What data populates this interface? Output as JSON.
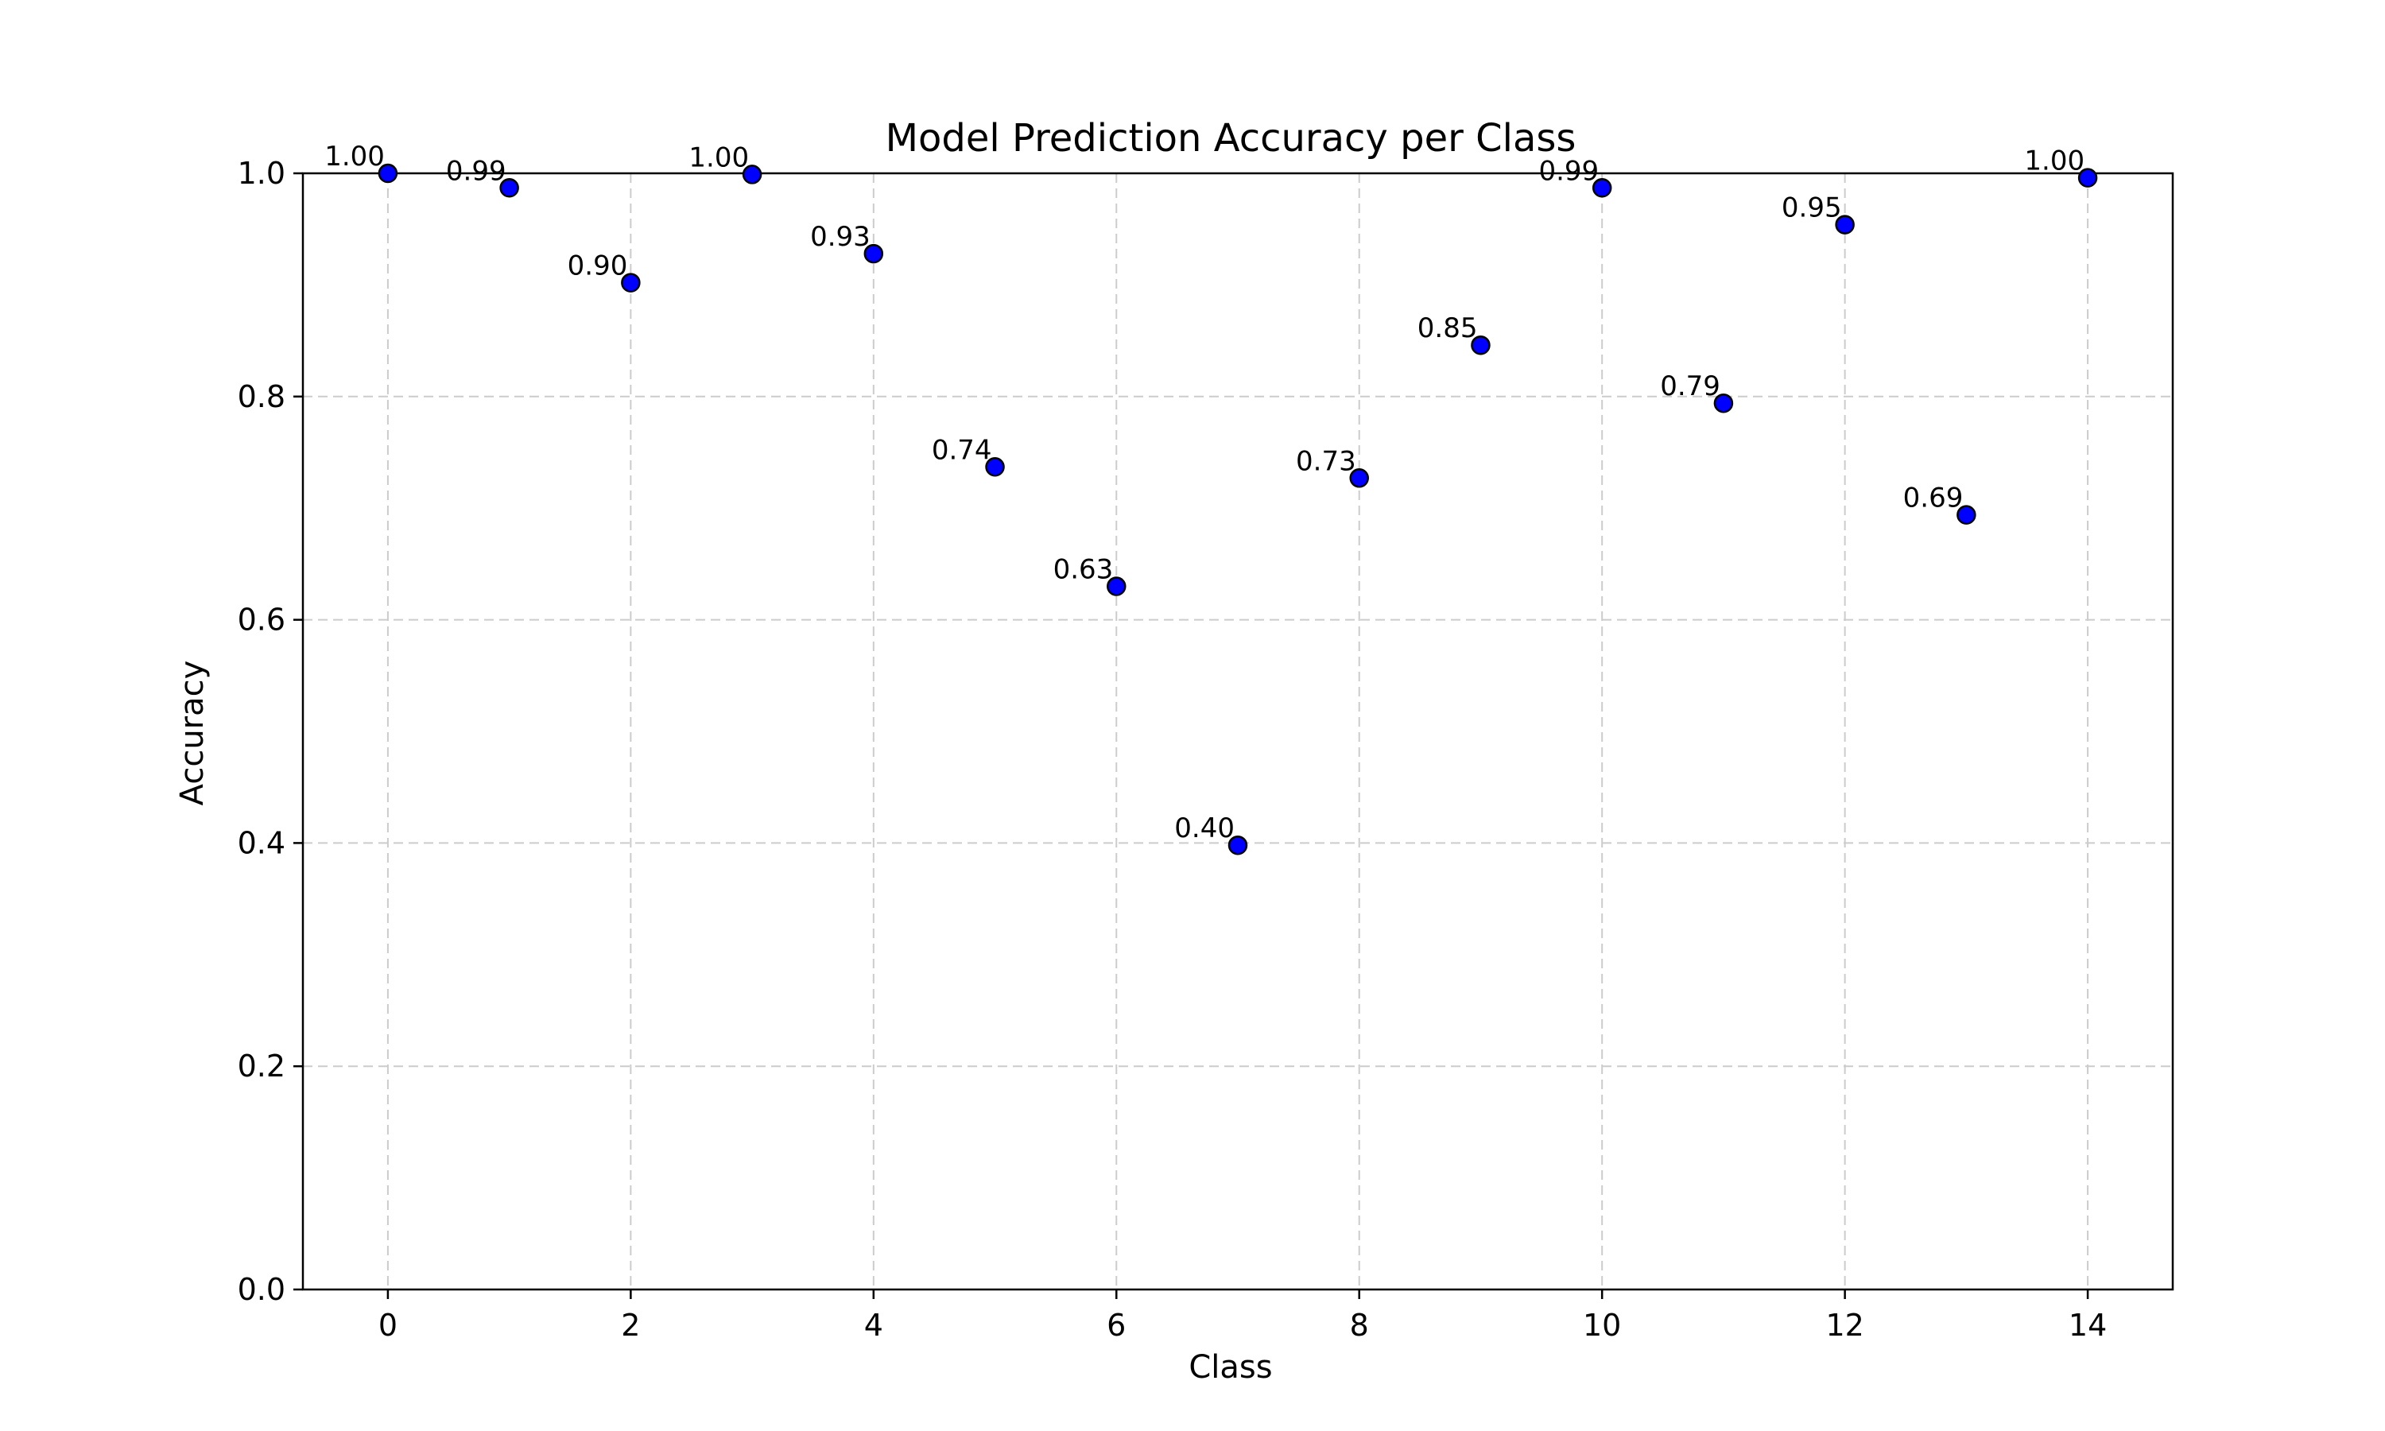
{
  "chart_data": {
    "type": "scatter",
    "title": "Model Prediction Accuracy per Class",
    "xlabel": "Class",
    "ylabel": "Accuracy",
    "xlim": [
      -0.7,
      14.7
    ],
    "ylim": [
      0.0,
      1.0
    ],
    "x_ticks": [
      0,
      2,
      4,
      6,
      8,
      10,
      12,
      14
    ],
    "x_tick_labels": [
      "0",
      "2",
      "4",
      "6",
      "8",
      "10",
      "12",
      "14"
    ],
    "y_ticks": [
      0.0,
      0.2,
      0.4,
      0.6,
      0.8,
      1.0
    ],
    "y_tick_labels": [
      "0.0",
      "0.2",
      "0.4",
      "0.6",
      "0.8",
      "1.0"
    ],
    "grid": true,
    "marker_color": "#0000ff",
    "marker_edge_color": "#000000",
    "points": [
      {
        "x": 0,
        "y": 1.0,
        "label": "1.00"
      },
      {
        "x": 1,
        "y": 0.987,
        "label": "0.99"
      },
      {
        "x": 2,
        "y": 0.902,
        "label": "0.90"
      },
      {
        "x": 3,
        "y": 0.999,
        "label": "1.00"
      },
      {
        "x": 4,
        "y": 0.928,
        "label": "0.93"
      },
      {
        "x": 5,
        "y": 0.737,
        "label": "0.74"
      },
      {
        "x": 6,
        "y": 0.63,
        "label": "0.63"
      },
      {
        "x": 7,
        "y": 0.398,
        "label": "0.40"
      },
      {
        "x": 8,
        "y": 0.727,
        "label": "0.73"
      },
      {
        "x": 9,
        "y": 0.846,
        "label": "0.85"
      },
      {
        "x": 10,
        "y": 0.987,
        "label": "0.99"
      },
      {
        "x": 11,
        "y": 0.794,
        "label": "0.79"
      },
      {
        "x": 12,
        "y": 0.954,
        "label": "0.95"
      },
      {
        "x": 13,
        "y": 0.694,
        "label": "0.69"
      },
      {
        "x": 14,
        "y": 0.996,
        "label": "1.00"
      }
    ]
  }
}
